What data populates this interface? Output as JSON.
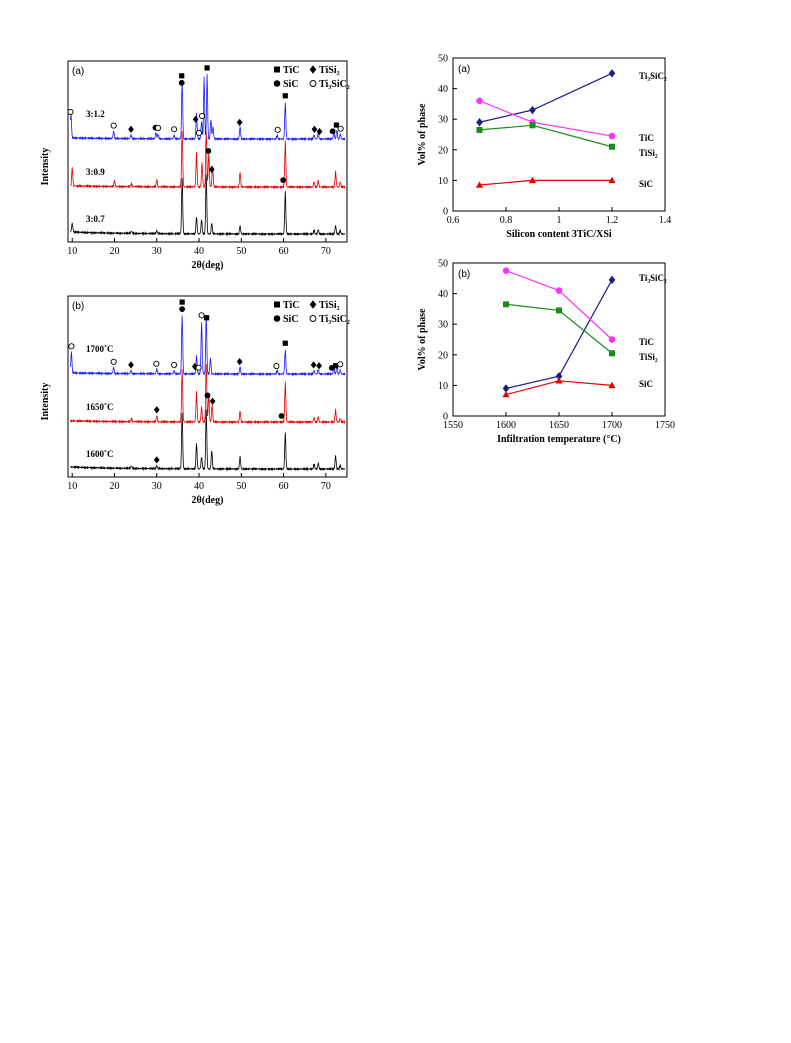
{
  "chart_data": [
    {
      "id": "xrd-a",
      "type": "line",
      "panel_label": "(a)",
      "xlabel": "2θ(deg)",
      "ylabel": "Intensity",
      "xlim": [
        9,
        75
      ],
      "xticks": [
        10,
        20,
        30,
        40,
        50,
        60,
        70
      ],
      "legend": {
        "position": "top-right",
        "rows": [
          [
            "TiC",
            "TiSi₂"
          ],
          [
            "SiC",
            "Ti₃SiC₂"
          ]
        ]
      },
      "series": [
        {
          "name": "3:0.7",
          "color": "#000000",
          "offset": 0,
          "peaks": [
            [
              10.0,
              0.15
            ],
            [
              24.0,
              0.04
            ],
            [
              30.0,
              0.05
            ],
            [
              36.0,
              0.9
            ],
            [
              39.4,
              0.28
            ],
            [
              40.6,
              0.24
            ],
            [
              41.7,
              0.95
            ],
            [
              43.0,
              0.18
            ],
            [
              49.7,
              0.13
            ],
            [
              60.4,
              0.7
            ],
            [
              67.2,
              0.06
            ],
            [
              68.2,
              0.07
            ],
            [
              72.3,
              0.14
            ],
            [
              73.4,
              0.06
            ]
          ]
        },
        {
          "name": "3:0.9",
          "color": "#e60000",
          "offset": 1,
          "peaks": [
            [
              10.0,
              0.3
            ],
            [
              20.0,
              0.1
            ],
            [
              24.0,
              0.05
            ],
            [
              30.0,
              0.12
            ],
            [
              36.0,
              0.9
            ],
            [
              39.4,
              0.55
            ],
            [
              40.7,
              0.4
            ],
            [
              41.7,
              0.92
            ],
            [
              42.3,
              0.55
            ],
            [
              43.2,
              0.35
            ],
            [
              49.7,
              0.24
            ],
            [
              60.4,
              0.75
            ],
            [
              67.2,
              0.08
            ],
            [
              68.2,
              0.1
            ],
            [
              72.3,
              0.25
            ],
            [
              73.4,
              0.08
            ]
          ]
        },
        {
          "name": "3:1.2",
          "color": "#1a1aff",
          "offset": 2,
          "peaks": [
            [
              9.7,
              0.4
            ],
            [
              19.8,
              0.12
            ],
            [
              23.9,
              0.06
            ],
            [
              29.8,
              0.1
            ],
            [
              30.3,
              0.08
            ],
            [
              34.1,
              0.06
            ],
            [
              36.0,
              0.95
            ],
            [
              39.4,
              0.42
            ],
            [
              40.6,
              0.3
            ],
            [
              41.2,
              1.0
            ],
            [
              41.9,
              1.05
            ],
            [
              42.8,
              0.32
            ],
            [
              43.3,
              0.2
            ],
            [
              49.7,
              0.2
            ],
            [
              58.5,
              0.06
            ],
            [
              60.4,
              0.6
            ],
            [
              67.2,
              0.07
            ],
            [
              68.2,
              0.1
            ],
            [
              71.9,
              0.12
            ],
            [
              72.6,
              0.15
            ],
            [
              73.4,
              0.08
            ]
          ]
        }
      ],
      "annotations": [
        {
          "x": 35.9,
          "series": 2,
          "markers": [
            "SiC",
            "TiC"
          ]
        },
        {
          "x": 40.7,
          "series": 2,
          "markers": [
            "Ti₃SiC₂"
          ]
        },
        {
          "x": 41.9,
          "series": 2,
          "markers": [
            "TiC"
          ]
        },
        {
          "x": 39.2,
          "series": 2,
          "markers": [
            "TiSi₂"
          ]
        },
        {
          "x": 40.0,
          "series": 2,
          "markers": [
            "Ti₃SiC₂"
          ]
        },
        {
          "x": 9.6,
          "series": 2,
          "markers": [
            "Ti₃SiC₂"
          ]
        },
        {
          "x": 19.8,
          "series": 2,
          "markers": [
            "Ti₃SiC₂"
          ]
        },
        {
          "x": 23.9,
          "series": 2,
          "markers": [
            "TiSi₂"
          ]
        },
        {
          "x": 29.7,
          "series": 2,
          "markers": [
            "SiC"
          ]
        },
        {
          "x": 30.3,
          "series": 2,
          "markers": [
            "Ti₃SiC₂"
          ]
        },
        {
          "x": 34.1,
          "series": 2,
          "markers": [
            "Ti₃SiC₂"
          ]
        },
        {
          "x": 49.6,
          "series": 2,
          "markers": [
            "TiSi₂"
          ]
        },
        {
          "x": 58.6,
          "series": 2,
          "markers": [
            "Ti₃SiC₂"
          ]
        },
        {
          "x": 60.4,
          "series": 2,
          "markers": [
            "TiC"
          ]
        },
        {
          "x": 67.3,
          "series": 2,
          "markers": [
            "TiSi₂"
          ]
        },
        {
          "x": 68.5,
          "series": 2,
          "markers": [
            "TiSi₂"
          ]
        },
        {
          "x": 71.6,
          "series": 2,
          "markers": [
            "SiC"
          ]
        },
        {
          "x": 72.5,
          "series": 2,
          "markers": [
            "TiC"
          ]
        },
        {
          "x": 73.5,
          "series": 2,
          "markers": [
            "Ti₃SiC₂"
          ]
        },
        {
          "x": 42.2,
          "series": 1,
          "markers": [
            "SiC"
          ]
        },
        {
          "x": 43.0,
          "series": 1,
          "markers": [
            "TiSi₂"
          ]
        },
        {
          "x": 59.9,
          "series": 1,
          "markers": [
            "SiC"
          ]
        }
      ]
    },
    {
      "id": "xrd-b",
      "type": "line",
      "panel_label": "(b)",
      "xlabel": "2θ(deg)",
      "ylabel": "Intensity",
      "xlim": [
        9,
        75
      ],
      "xticks": [
        10,
        20,
        30,
        40,
        50,
        60,
        70
      ],
      "legend": {
        "position": "top-right",
        "rows": [
          [
            "TiC",
            "TiSi₂"
          ],
          [
            "SiC",
            "Ti₃SiC₂"
          ]
        ]
      },
      "series": [
        {
          "name": "1600˚C",
          "color": "#000000",
          "offset": 0,
          "peaks": [
            [
              24.0,
              0.04
            ],
            [
              30.0,
              0.05
            ],
            [
              36.0,
              0.9
            ],
            [
              39.4,
              0.42
            ],
            [
              40.6,
              0.2
            ],
            [
              41.7,
              0.95
            ],
            [
              43.0,
              0.3
            ],
            [
              49.7,
              0.2
            ],
            [
              60.4,
              0.6
            ],
            [
              67.2,
              0.08
            ],
            [
              68.2,
              0.1
            ],
            [
              72.3,
              0.22
            ],
            [
              73.4,
              0.06
            ]
          ]
        },
        {
          "name": "1650˚C",
          "color": "#e60000",
          "offset": 1,
          "peaks": [
            [
              24.0,
              0.05
            ],
            [
              30.0,
              0.1
            ],
            [
              36.0,
              0.85
            ],
            [
              39.4,
              0.48
            ],
            [
              40.6,
              0.25
            ],
            [
              41.7,
              0.95
            ],
            [
              42.3,
              0.45
            ],
            [
              43.1,
              0.28
            ],
            [
              49.7,
              0.18
            ],
            [
              60.4,
              0.65
            ],
            [
              67.2,
              0.07
            ],
            [
              68.2,
              0.08
            ],
            [
              72.3,
              0.2
            ],
            [
              73.4,
              0.06
            ]
          ]
        },
        {
          "name": "1700˚C",
          "color": "#1a1aff",
          "offset": 2,
          "peaks": [
            [
              9.8,
              0.35
            ],
            [
              19.8,
              0.1
            ],
            [
              23.9,
              0.05
            ],
            [
              30.0,
              0.08
            ],
            [
              34.1,
              0.05
            ],
            [
              36.0,
              0.95
            ],
            [
              39.4,
              0.3
            ],
            [
              40.6,
              0.85
            ],
            [
              41.7,
              0.95
            ],
            [
              42.7,
              0.25
            ],
            [
              49.7,
              0.12
            ],
            [
              58.5,
              0.06
            ],
            [
              60.4,
              0.4
            ],
            [
              67.2,
              0.06
            ],
            [
              68.2,
              0.07
            ],
            [
              71.9,
              0.1
            ],
            [
              72.6,
              0.12
            ],
            [
              73.4,
              0.06
            ]
          ]
        }
      ],
      "annotations": [
        {
          "x": 36.0,
          "series": 2,
          "markers": [
            "SiC",
            "TiC"
          ]
        },
        {
          "x": 40.6,
          "series": 2,
          "markers": [
            "Ti₃SiC₂"
          ]
        },
        {
          "x": 41.8,
          "series": 2,
          "markers": [
            "TiC"
          ]
        },
        {
          "x": 39.0,
          "series": 2,
          "markers": [
            "TiSi₂"
          ]
        },
        {
          "x": 39.9,
          "series": 2,
          "markers": [
            "Ti₃SiC₂"
          ]
        },
        {
          "x": 9.8,
          "series": 2,
          "markers": [
            "Ti₃SiC₂"
          ]
        },
        {
          "x": 19.8,
          "series": 2,
          "markers": [
            "Ti₃SiC₂"
          ]
        },
        {
          "x": 23.9,
          "series": 2,
          "markers": [
            "TiSi₂"
          ]
        },
        {
          "x": 29.9,
          "series": 2,
          "markers": [
            "Ti₃SiC₂"
          ]
        },
        {
          "x": 34.1,
          "series": 2,
          "markers": [
            "Ti₃SiC₂"
          ]
        },
        {
          "x": 49.6,
          "series": 2,
          "markers": [
            "TiSi₂"
          ]
        },
        {
          "x": 58.3,
          "series": 2,
          "markers": [
            "Ti₃SiC₂"
          ]
        },
        {
          "x": 60.4,
          "series": 2,
          "markers": [
            "TiC"
          ]
        },
        {
          "x": 67.1,
          "series": 2,
          "markers": [
            "TiSi₂"
          ]
        },
        {
          "x": 68.4,
          "series": 2,
          "markers": [
            "TiSi₂"
          ]
        },
        {
          "x": 71.4,
          "series": 2,
          "markers": [
            "SiC"
          ]
        },
        {
          "x": 72.3,
          "series": 2,
          "markers": [
            "TiC"
          ]
        },
        {
          "x": 73.4,
          "series": 2,
          "markers": [
            "Ti₃SiC₂"
          ]
        },
        {
          "x": 30.0,
          "series": 1,
          "markers": [
            "TiSi₂"
          ]
        },
        {
          "x": 42.0,
          "series": 1,
          "markers": [
            "SiC"
          ]
        },
        {
          "x": 43.2,
          "series": 1,
          "markers": [
            "TiSi₂"
          ]
        },
        {
          "x": 59.5,
          "series": 1,
          "markers": [
            "SiC"
          ]
        },
        {
          "x": 30.0,
          "series": 0,
          "markers": [
            "TiSi₂"
          ]
        }
      ]
    },
    {
      "id": "vol-a",
      "type": "line",
      "panel_label": "(a)",
      "xlabel": "Silicon content 3TiC/XSi",
      "ylabel": "Vol% of phase",
      "xlim": [
        0.6,
        1.4
      ],
      "ylim": [
        0,
        50
      ],
      "xticks": [
        0.6,
        0.8,
        1,
        1.2,
        1.4
      ],
      "yticks": [
        0,
        10,
        20,
        30,
        40,
        50
      ],
      "x": [
        0.7,
        0.9,
        1.2
      ],
      "series": [
        {
          "name": "Ti₃SiC₂",
          "color": "#1c1c8c",
          "marker": "diamond",
          "values": [
            29,
            33,
            45
          ]
        },
        {
          "name": "TiC",
          "color": "#ff33ff",
          "marker": "circle",
          "values": [
            36,
            29,
            24.5
          ]
        },
        {
          "name": "TiSi₂",
          "color": "#1a8c1a",
          "marker": "square",
          "values": [
            26.5,
            28,
            21
          ]
        },
        {
          "name": "SiC",
          "color": "#e60000",
          "marker": "triangle",
          "values": [
            8.5,
            10,
            10
          ]
        }
      ]
    },
    {
      "id": "vol-b",
      "type": "line",
      "panel_label": "(b)",
      "xlabel": "Infiltration temperature (°C)",
      "ylabel": "Vol% of phase",
      "xlim": [
        1550,
        1750
      ],
      "ylim": [
        0,
        50
      ],
      "xticks": [
        1550,
        1600,
        1650,
        1700,
        1750
      ],
      "yticks": [
        0,
        10,
        20,
        30,
        40,
        50
      ],
      "x": [
        1600,
        1650,
        1700
      ],
      "series": [
        {
          "name": "Ti₃SiC₂",
          "color": "#1c1c8c",
          "marker": "diamond",
          "values": [
            9,
            13,
            44.5
          ]
        },
        {
          "name": "TiC",
          "color": "#ff33ff",
          "marker": "circle",
          "values": [
            47.5,
            41,
            25
          ]
        },
        {
          "name": "TiSi₂",
          "color": "#1a8c1a",
          "marker": "square",
          "values": [
            36.5,
            34.5,
            20.5
          ]
        },
        {
          "name": "SiC",
          "color": "#e60000",
          "marker": "triangle",
          "values": [
            7,
            11.5,
            10
          ]
        }
      ]
    }
  ]
}
